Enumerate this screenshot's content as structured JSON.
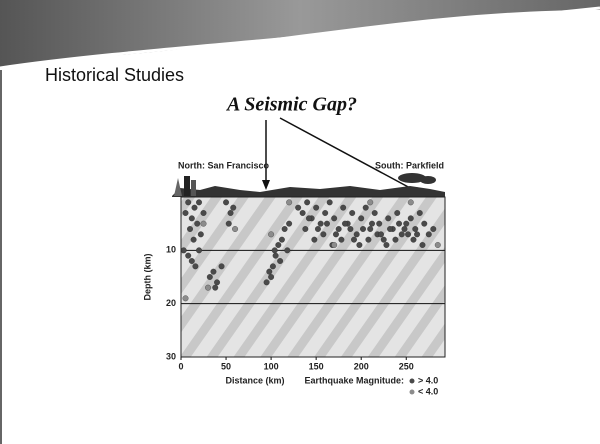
{
  "slide_title": "Historical Studies",
  "chart_data": {
    "type": "scatter",
    "title": "A Seismic Gap?",
    "left_label": "North: San Francisco",
    "right_label": "South: Parkfield",
    "x_label": "Distance (km)",
    "y_label": "Depth (km)",
    "legend_title": "Earthquake Magnitude:",
    "xlim": [
      0,
      293
    ],
    "xticks": [
      0,
      50,
      100,
      150,
      200,
      250
    ],
    "ylim": [
      30,
      0
    ],
    "yticks": [
      10,
      20,
      30
    ],
    "grid": true,
    "series": [
      {
        "name": "> 4.0",
        "color": "#4a4a4a",
        "x": [
          5,
          8,
          12,
          15,
          18,
          20,
          25,
          10,
          14,
          22,
          50,
          55,
          58,
          53,
          3,
          8,
          12,
          16,
          20,
          32,
          36,
          40,
          45,
          38,
          95,
          98,
          102,
          105,
          108,
          110,
          112,
          115,
          118,
          120,
          100,
          104,
          130,
          135,
          140,
          145,
          150,
          155,
          160,
          165,
          170,
          175,
          180,
          185,
          190,
          195,
          200,
          205,
          210,
          215,
          220,
          225,
          230,
          235,
          240,
          245,
          250,
          255,
          260,
          265,
          270,
          275,
          280,
          138,
          148,
          158,
          168,
          178,
          188,
          198,
          208,
          218,
          228,
          238,
          248,
          258,
          268,
          142,
          152,
          162,
          172,
          182,
          192,
          202,
          212,
          222,
          232,
          242,
          252,
          262
        ],
        "values": [
          3,
          1,
          4,
          2,
          5,
          1,
          3,
          6,
          8,
          7,
          1,
          3,
          2,
          5,
          10,
          11,
          12,
          13,
          10,
          15,
          14,
          16,
          13,
          17,
          16,
          14,
          13,
          11,
          9,
          12,
          8,
          6,
          10,
          5,
          15,
          10,
          2,
          3,
          1,
          4,
          2,
          5,
          3,
          1,
          4,
          6,
          2,
          5,
          3,
          7,
          4,
          2,
          6,
          3,
          5,
          8,
          4,
          6,
          3,
          7,
          5,
          4,
          6,
          3,
          5,
          7,
          6,
          6,
          8,
          7,
          9,
          8,
          6,
          9,
          8,
          7,
          9,
          8,
          6,
          8,
          9,
          4,
          6,
          5,
          7,
          5,
          8,
          6,
          5,
          7,
          6,
          5,
          7,
          7
        ]
      },
      {
        "name": "< 4.0",
        "color": "#8c8c8c",
        "x": [
          30,
          60,
          210,
          285,
          255,
          25,
          120,
          170,
          5,
          100
        ],
        "values": [
          17,
          6,
          1,
          9,
          1,
          5,
          1,
          9,
          19,
          7
        ]
      }
    ]
  }
}
